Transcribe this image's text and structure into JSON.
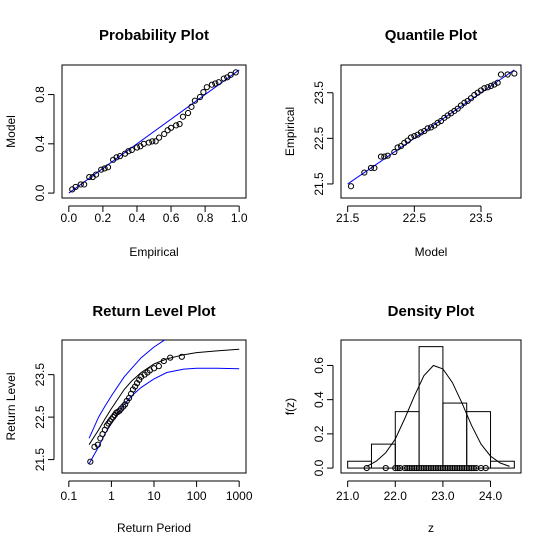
{
  "chart_data": [
    {
      "type": "scatter",
      "title": "Probability Plot",
      "xlabel": "Empirical",
      "ylabel": "Model",
      "xlim": [
        0,
        1
      ],
      "ylim": [
        0,
        1
      ],
      "xticks": [
        "0.0",
        "0.2",
        "0.4",
        "0.6",
        "0.8",
        "1.0"
      ],
      "yticks": [
        "0.0",
        "0.4",
        "0.8"
      ],
      "reference_line": "y = x (blue)",
      "points": [
        [
          0.02,
          0.03
        ],
        [
          0.04,
          0.05
        ],
        [
          0.07,
          0.07
        ],
        [
          0.09,
          0.07
        ],
        [
          0.12,
          0.13
        ],
        [
          0.14,
          0.13
        ],
        [
          0.16,
          0.15
        ],
        [
          0.19,
          0.19
        ],
        [
          0.21,
          0.2
        ],
        [
          0.23,
          0.21
        ],
        [
          0.26,
          0.27
        ],
        [
          0.28,
          0.29
        ],
        [
          0.3,
          0.3
        ],
        [
          0.33,
          0.32
        ],
        [
          0.35,
          0.34
        ],
        [
          0.37,
          0.35
        ],
        [
          0.4,
          0.37
        ],
        [
          0.42,
          0.38
        ],
        [
          0.44,
          0.4
        ],
        [
          0.47,
          0.41
        ],
        [
          0.49,
          0.42
        ],
        [
          0.51,
          0.42
        ],
        [
          0.53,
          0.45
        ],
        [
          0.56,
          0.48
        ],
        [
          0.58,
          0.51
        ],
        [
          0.6,
          0.53
        ],
        [
          0.63,
          0.55
        ],
        [
          0.65,
          0.56
        ],
        [
          0.67,
          0.62
        ],
        [
          0.7,
          0.65
        ],
        [
          0.72,
          0.7
        ],
        [
          0.74,
          0.75
        ],
        [
          0.77,
          0.78
        ],
        [
          0.79,
          0.82
        ],
        [
          0.81,
          0.86
        ],
        [
          0.84,
          0.88
        ],
        [
          0.86,
          0.89
        ],
        [
          0.88,
          0.9
        ],
        [
          0.91,
          0.93
        ],
        [
          0.93,
          0.94
        ],
        [
          0.95,
          0.96
        ],
        [
          0.98,
          0.98
        ]
      ]
    },
    {
      "type": "scatter",
      "title": "Quantile Plot",
      "xlabel": "Model",
      "ylabel": "Empirical",
      "xlim": [
        21.5,
        24.0
      ],
      "ylim": [
        21.3,
        24.0
      ],
      "xticks": [
        "21.5",
        "22.5",
        "23.5"
      ],
      "yticks": [
        "21.5",
        "22.5",
        "23.5"
      ],
      "reference_line": "y = x (blue)",
      "points": [
        [
          21.55,
          21.45
        ],
        [
          21.75,
          21.75
        ],
        [
          21.85,
          21.85
        ],
        [
          21.9,
          21.85
        ],
        [
          22.0,
          22.1
        ],
        [
          22.05,
          22.1
        ],
        [
          22.1,
          22.12
        ],
        [
          22.2,
          22.2
        ],
        [
          22.25,
          22.3
        ],
        [
          22.3,
          22.33
        ],
        [
          22.35,
          22.4
        ],
        [
          22.4,
          22.45
        ],
        [
          22.45,
          22.52
        ],
        [
          22.5,
          22.55
        ],
        [
          22.55,
          22.58
        ],
        [
          22.6,
          22.63
        ],
        [
          22.65,
          22.66
        ],
        [
          22.7,
          22.72
        ],
        [
          22.75,
          22.74
        ],
        [
          22.8,
          22.78
        ],
        [
          22.85,
          22.84
        ],
        [
          22.9,
          22.88
        ],
        [
          22.95,
          22.95
        ],
        [
          23.0,
          23.0
        ],
        [
          23.05,
          23.05
        ],
        [
          23.1,
          23.1
        ],
        [
          23.15,
          23.15
        ],
        [
          23.2,
          23.22
        ],
        [
          23.25,
          23.28
        ],
        [
          23.3,
          23.32
        ],
        [
          23.35,
          23.38
        ],
        [
          23.4,
          23.45
        ],
        [
          23.45,
          23.5
        ],
        [
          23.5,
          23.55
        ],
        [
          23.55,
          23.6
        ],
        [
          23.6,
          23.62
        ],
        [
          23.65,
          23.65
        ],
        [
          23.7,
          23.68
        ],
        [
          23.75,
          23.72
        ],
        [
          23.8,
          23.9
        ],
        [
          23.9,
          23.9
        ],
        [
          24.0,
          23.92
        ]
      ]
    },
    {
      "type": "line",
      "title": "Return Level Plot",
      "xlabel": "Return Period",
      "ylabel": "Return Level",
      "xscale": "log",
      "xlim": [
        0.1,
        1000
      ],
      "ylim": [
        21.3,
        24.2
      ],
      "xticks": [
        "0.1",
        "1",
        "10",
        "100",
        "1000"
      ],
      "yticks": [
        "21.5",
        "22.5",
        "23.5"
      ],
      "series": [
        {
          "color": "#000000",
          "x": [
            0.3,
            0.5,
            0.7,
            1,
            2,
            3,
            5,
            10,
            20,
            50,
            100,
            300,
            1000
          ],
          "y": [
            21.85,
            22.2,
            22.45,
            22.7,
            23.15,
            23.35,
            23.55,
            23.75,
            23.87,
            23.97,
            24.02,
            24.06,
            24.1
          ]
        },
        {
          "color": "#0000ff",
          "x": [
            0.3,
            0.5,
            0.7,
            1,
            2,
            3,
            5,
            10,
            20,
            50,
            100,
            300,
            1000
          ],
          "y": [
            21.4,
            21.8,
            22.1,
            22.35,
            22.8,
            23.0,
            23.2,
            23.4,
            23.55,
            23.63,
            23.65,
            23.65,
            23.64
          ]
        },
        {
          "color": "#0000ff",
          "x": [
            0.3,
            0.5,
            0.7,
            1,
            2,
            3,
            5,
            10,
            20,
            50
          ],
          "y": [
            22.0,
            22.5,
            22.75,
            23.0,
            23.45,
            23.65,
            23.9,
            24.15,
            24.35,
            24.6
          ]
        }
      ],
      "points": [
        [
          0.32,
          21.45
        ],
        [
          0.4,
          21.8
        ],
        [
          0.48,
          21.85
        ],
        [
          0.55,
          22.0
        ],
        [
          0.62,
          22.1
        ],
        [
          0.7,
          22.2
        ],
        [
          0.78,
          22.3
        ],
        [
          0.85,
          22.35
        ],
        [
          0.92,
          22.4
        ],
        [
          1.0,
          22.45
        ],
        [
          1.1,
          22.5
        ],
        [
          1.2,
          22.55
        ],
        [
          1.3,
          22.6
        ],
        [
          1.4,
          22.62
        ],
        [
          1.55,
          22.65
        ],
        [
          1.7,
          22.7
        ],
        [
          1.9,
          22.75
        ],
        [
          2.1,
          22.8
        ],
        [
          2.3,
          22.88
        ],
        [
          2.6,
          22.95
        ],
        [
          2.9,
          23.05
        ],
        [
          3.2,
          23.15
        ],
        [
          3.6,
          23.22
        ],
        [
          4.0,
          23.3
        ],
        [
          4.5,
          23.38
        ],
        [
          5.0,
          23.45
        ],
        [
          6.0,
          23.5
        ],
        [
          7.0,
          23.55
        ],
        [
          8.0,
          23.6
        ],
        [
          10.0,
          23.65
        ],
        [
          13.0,
          23.7
        ],
        [
          17.0,
          23.82
        ],
        [
          24.0,
          23.9
        ],
        [
          45.0,
          23.92
        ]
      ]
    },
    {
      "type": "bar",
      "title": "Density Plot",
      "xlabel": "z",
      "ylabel": "f(z)",
      "xlim": [
        21.0,
        24.5
      ],
      "ylim": [
        0,
        0.72
      ],
      "xticks": [
        "21.0",
        "22.0",
        "23.0",
        "24.0"
      ],
      "yticks": [
        "0.0",
        "0.2",
        "0.4",
        "0.6"
      ],
      "bins": [
        [
          21.0,
          21.5,
          0.04
        ],
        [
          21.5,
          22.0,
          0.14
        ],
        [
          22.0,
          22.5,
          0.33
        ],
        [
          22.5,
          23.0,
          0.71
        ],
        [
          23.0,
          23.5,
          0.38
        ],
        [
          23.5,
          24.0,
          0.33
        ],
        [
          24.0,
          24.5,
          0.04
        ]
      ],
      "density_curve": {
        "x": [
          21.4,
          21.6,
          21.8,
          22.0,
          22.2,
          22.4,
          22.6,
          22.8,
          23.0,
          23.2,
          23.4,
          23.6,
          23.8,
          24.0,
          24.2,
          24.4
        ],
        "y": [
          0.01,
          0.04,
          0.09,
          0.17,
          0.29,
          0.42,
          0.54,
          0.6,
          0.58,
          0.5,
          0.38,
          0.25,
          0.14,
          0.07,
          0.03,
          0.01
        ]
      },
      "rug": [
        21.4,
        21.8,
        22.0,
        22.05,
        22.1,
        22.2,
        22.25,
        22.3,
        22.35,
        22.4,
        22.45,
        22.5,
        22.55,
        22.6,
        22.65,
        22.7,
        22.75,
        22.8,
        22.85,
        22.9,
        22.95,
        23.0,
        23.05,
        23.1,
        23.15,
        23.2,
        23.25,
        23.3,
        23.35,
        23.4,
        23.45,
        23.5,
        23.55,
        23.6,
        23.65,
        23.7,
        23.8,
        23.9
      ]
    }
  ]
}
